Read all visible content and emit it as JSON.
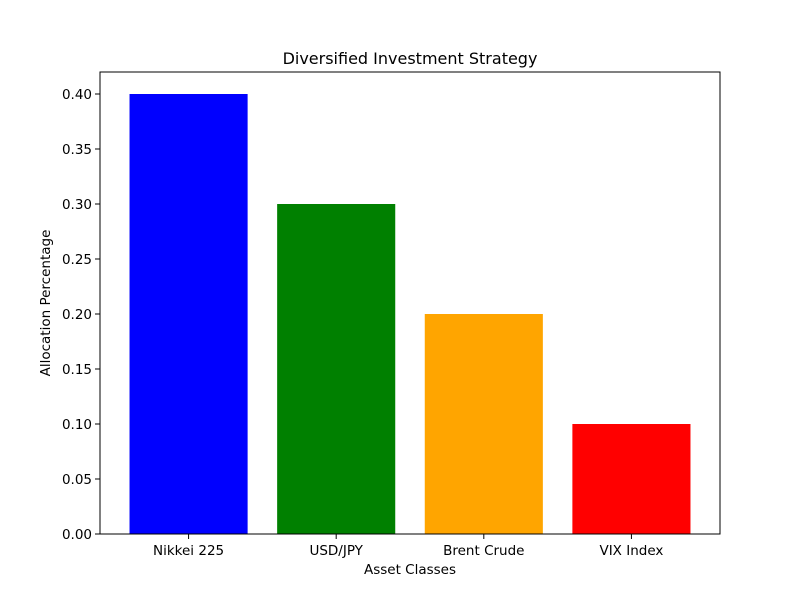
{
  "chart_data": {
    "type": "bar",
    "title": "Diversified Investment Strategy",
    "xlabel": "Asset Classes",
    "ylabel": "Allocation Percentage",
    "categories": [
      "Nikkei 225",
      "USD/JPY",
      "Brent Crude",
      "VIX Index"
    ],
    "values": [
      0.4,
      0.3,
      0.2,
      0.1
    ],
    "colors": [
      "#0000ff",
      "#008000",
      "#ffa500",
      "#ff0000"
    ],
    "ylim": [
      0,
      0.42
    ],
    "yticks": [
      0.0,
      0.05,
      0.1,
      0.15,
      0.2,
      0.25,
      0.3,
      0.35,
      0.4
    ],
    "ytick_labels": [
      "0.00",
      "0.05",
      "0.10",
      "0.15",
      "0.20",
      "0.25",
      "0.30",
      "0.35",
      "0.40"
    ],
    "grid": false,
    "legend": "none"
  }
}
